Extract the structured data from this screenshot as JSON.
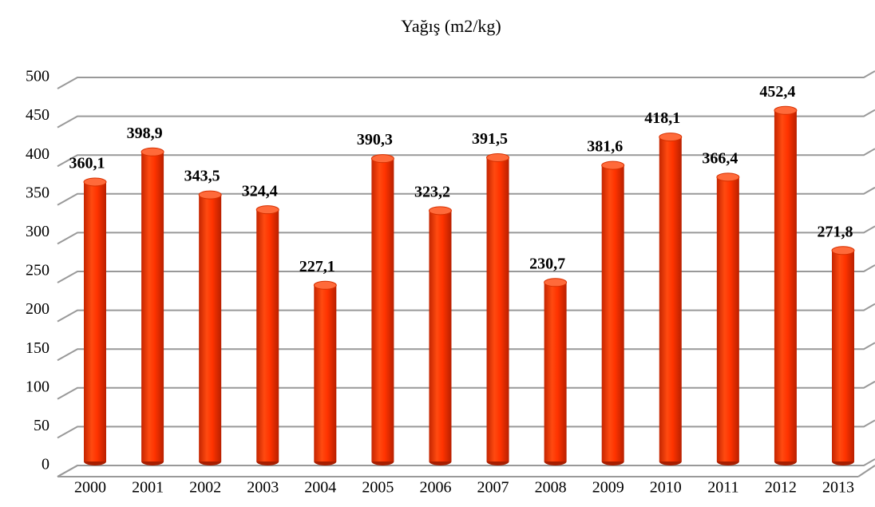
{
  "chart_data": {
    "type": "bar",
    "title": "Yağış (m2/kg)",
    "categories": [
      "2000",
      "2001",
      "2002",
      "2003",
      "2004",
      "2005",
      "2006",
      "2007",
      "2008",
      "2009",
      "2010",
      "2011",
      "2012",
      "2013"
    ],
    "values": [
      360.1,
      398.9,
      343.5,
      324.4,
      227.1,
      390.3,
      323.2,
      391.5,
      230.7,
      381.6,
      418.1,
      366.4,
      452.4,
      271.8
    ],
    "value_labels": [
      "360,1",
      "398,9",
      "343,5",
      "324,4",
      "227,1",
      "390,3",
      "323,2",
      "391,5",
      "230,7",
      "381,6",
      "418,1",
      "366,4",
      "452,4",
      "271,8"
    ],
    "color": "#ff3300",
    "ylim": [
      0,
      500
    ],
    "yticks": [
      0,
      50,
      100,
      150,
      200,
      250,
      300,
      350,
      400,
      450,
      500
    ],
    "grid": true
  }
}
